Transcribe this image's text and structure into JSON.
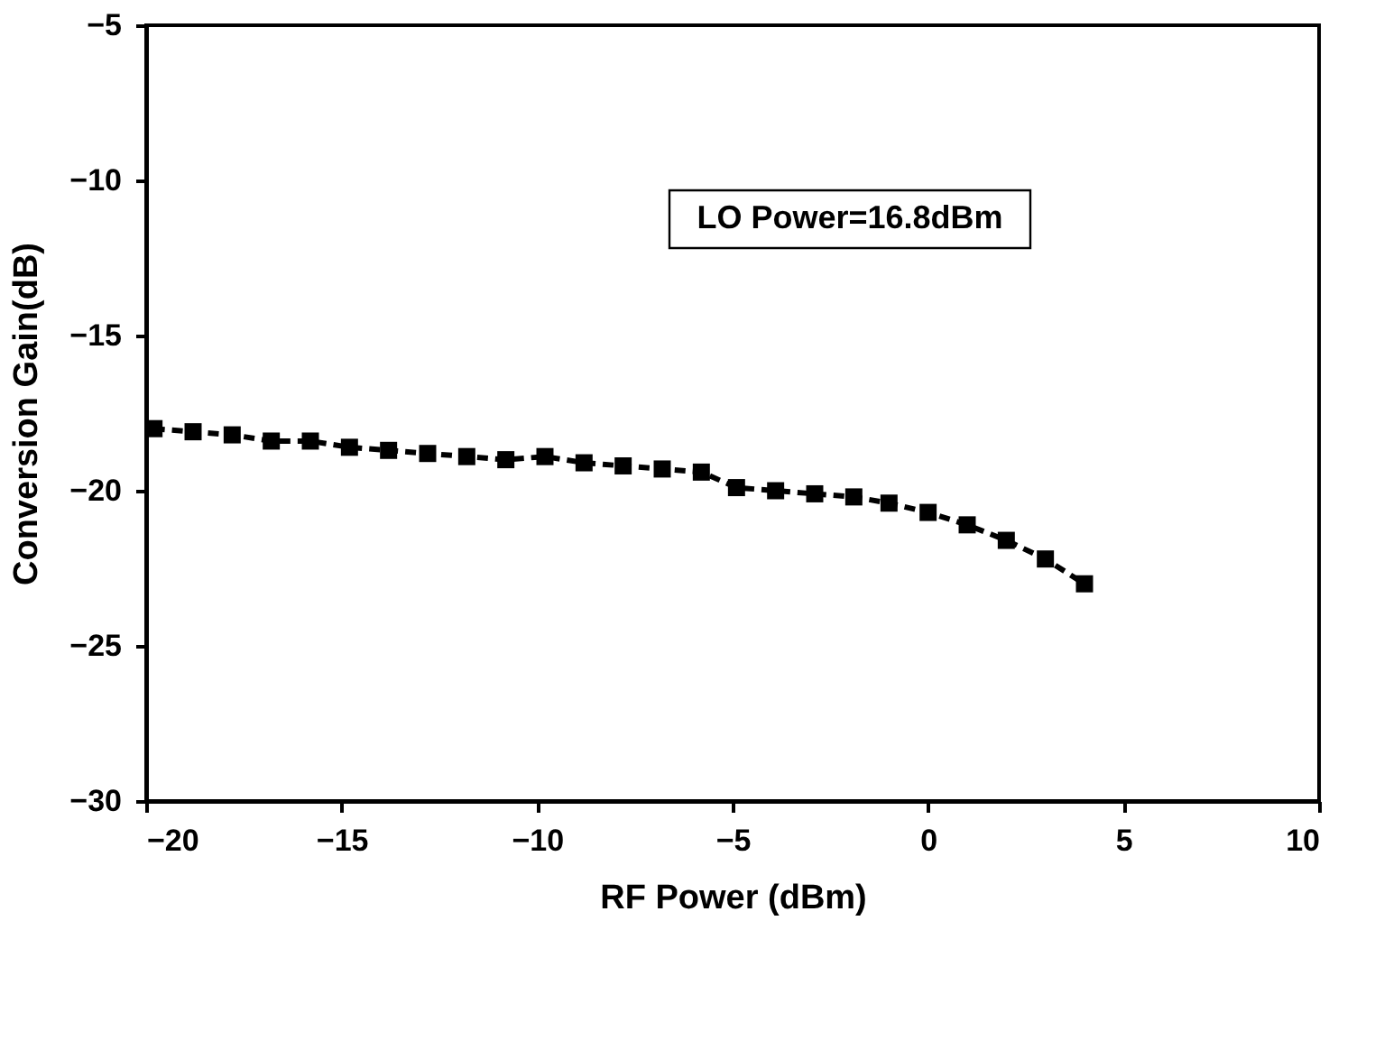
{
  "chart_data": {
    "type": "line",
    "xlabel": "RF Power (dBm)",
    "ylabel": "Conversion Gain(dB)",
    "annotations": [
      "LO Power=16.8dBm"
    ],
    "x": [
      -19.8,
      -18.8,
      -17.8,
      -16.8,
      -15.8,
      -14.8,
      -13.8,
      -12.8,
      -11.8,
      -10.8,
      -9.8,
      -8.8,
      -7.8,
      -6.8,
      -5.8,
      -4.9,
      -3.9,
      -2.9,
      -1.9,
      -1.0,
      0.0,
      1.0,
      2.0,
      3.0,
      4.0
    ],
    "series": [
      {
        "color": "#000000",
        "values": [
          -18.0,
          -18.1,
          -18.2,
          -18.4,
          -18.4,
          -18.6,
          -18.7,
          -18.8,
          -18.9,
          -19.0,
          -18.9,
          -19.1,
          -19.2,
          -19.3,
          -19.4,
          -19.9,
          -20.0,
          -20.1,
          -20.2,
          -20.4,
          -20.7,
          -21.1,
          -21.6,
          -22.2,
          -23.0
        ]
      }
    ],
    "xlim": [
      -20,
      10
    ],
    "xticks": [
      -20,
      -15,
      -10,
      -5,
      0,
      5,
      10
    ],
    "ylim": [
      -30,
      -5
    ],
    "yticks": [
      -30,
      -25,
      -20,
      -15,
      -10,
      -5
    ],
    "marker": "square",
    "line_style": "dashed",
    "grid": false
  }
}
